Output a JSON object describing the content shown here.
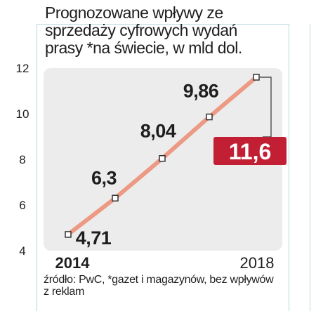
{
  "chart_data": {
    "type": "line",
    "title": "Prognozowane wpływy ze sprzedaży cyfrowych wydań prasy *na świecie, w mld dol.",
    "x": [
      2014,
      2015,
      2016,
      2017,
      2018
    ],
    "x_tick_labels": [
      "2014",
      "2018"
    ],
    "series": [
      {
        "values": [
          4.71,
          6.3,
          8.04,
          9.86,
          11.6
        ],
        "data_labels": [
          "4,71",
          "6,3",
          "8,04",
          "9,86",
          "11,6"
        ]
      }
    ],
    "y_ticks": [
      4,
      6,
      8,
      10,
      12
    ],
    "y_tick_labels": [
      "4",
      "6",
      "8",
      "10",
      "12"
    ],
    "ylim": [
      4,
      12
    ],
    "xlabel": "",
    "ylabel": "",
    "grid": false,
    "legend": "none",
    "highlight_last_point": true,
    "colors": {
      "line": "#ec9a84",
      "plot_background": "#ececec",
      "marker_fill": "#ffffff",
      "marker_stroke": "#333333",
      "highlight_fill": "#c21f35",
      "highlight_text": "#ffffff",
      "text": "#1e1e1e"
    }
  },
  "source": "źródło: PwC, *gazet i magazynów, bez wpływów z reklam"
}
